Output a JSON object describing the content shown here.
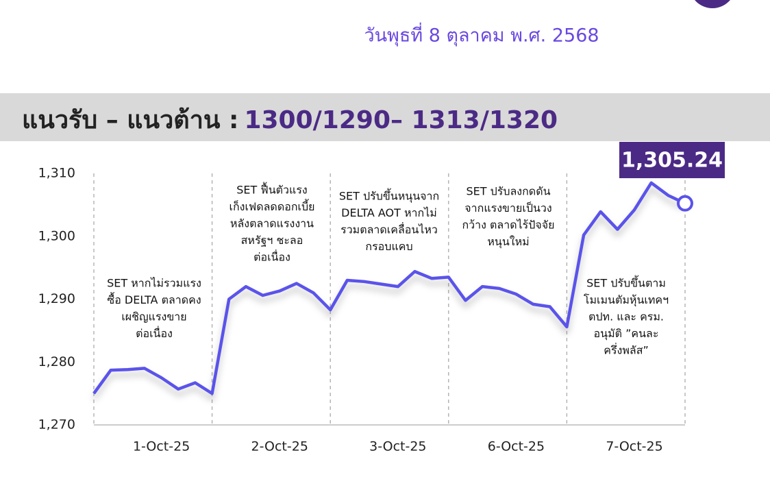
{
  "header": {
    "date": "วันพุธที่ 8 ตุลาคม พ.ศ. 2568",
    "title": "แนวรับ – แนวต้าน :",
    "levels": "1300/1290– 1313/1320"
  },
  "chart_data": {
    "type": "line",
    "categories": [
      null,
      null,
      null,
      null,
      "1-Oct-25",
      null,
      null,
      null,
      null,
      null,
      null,
      "2-Oct-25",
      null,
      null,
      null,
      null,
      null,
      null,
      "3-Oct-25",
      null,
      null,
      null,
      null,
      null,
      null,
      "6-Oct-25",
      null,
      null,
      null,
      null,
      null,
      null,
      "7-Oct-25",
      null,
      null,
      null
    ],
    "series": [
      {
        "color": "#5a52ea",
        "values": [
          1275,
          1278.7,
          1278.8,
          1279,
          1277.5,
          1275.7,
          1276.7,
          1275,
          1290,
          1292,
          1290.6,
          1291.3,
          1292.5,
          1291,
          1288.3,
          1293,
          1292.8,
          1292.4,
          1292,
          1294.4,
          1293.3,
          1293.5,
          1289.8,
          1292,
          1291.7,
          1290.8,
          1289.2,
          1288.8,
          1285.6,
          1300.2,
          1303.9,
          1301.1,
          1304.2,
          1308.5,
          1306.5,
          1305.24
        ],
        "value_labels": [
          null,
          null,
          null,
          null,
          null,
          null,
          null,
          null,
          null,
          null,
          null,
          null,
          null,
          null,
          null,
          null,
          null,
          null,
          null,
          null,
          null,
          null,
          null,
          null,
          null,
          null,
          null,
          null,
          null,
          null,
          null,
          null,
          null,
          null,
          null,
          "1,305.24"
        ]
      }
    ],
    "ylim": [
      1270,
      1310
    ],
    "yticks": [
      {
        "value": 1270,
        "label": "1,270"
      },
      {
        "value": 1280,
        "label": "1,280"
      },
      {
        "value": 1290,
        "label": "1,290"
      },
      {
        "value": 1300,
        "label": "1,300"
      },
      {
        "value": 1310,
        "label": "1,310"
      }
    ],
    "annotations": [
      [
        "SET หากไม่รวมแรง",
        "ซื้อ DELTA ตลาดคง",
        "เผชิญแรงขาย",
        "ต่อเนื่อง"
      ],
      [
        "SET ฟื้นตัวแรง",
        "เก็งเฟดลดดอกเบี้ย",
        "หลังตลาดแรงงาน",
        "สหรัฐฯ ชะลอ",
        "ต่อเนื่อง"
      ],
      [
        "SET ปรับขึ้นหนุนจาก",
        "DELTA AOT หากไม่",
        "รวมตลาดเคลื่อนไหว",
        "กรอบแคบ"
      ],
      [
        "SET ปรับลงกดดัน",
        "จากแรงขายเป็นวง",
        "กว้าง ตลาดไร้ปัจจัย",
        "หนุนใหม่"
      ],
      [
        "SET ปรับขึ้นตาม",
        "โมเมนตัมหุ้นเทคฯ",
        "ตปท. และ ครม.",
        "อนุมัติ ”คนละ",
        "ครึ่งพลัส”"
      ]
    ]
  }
}
